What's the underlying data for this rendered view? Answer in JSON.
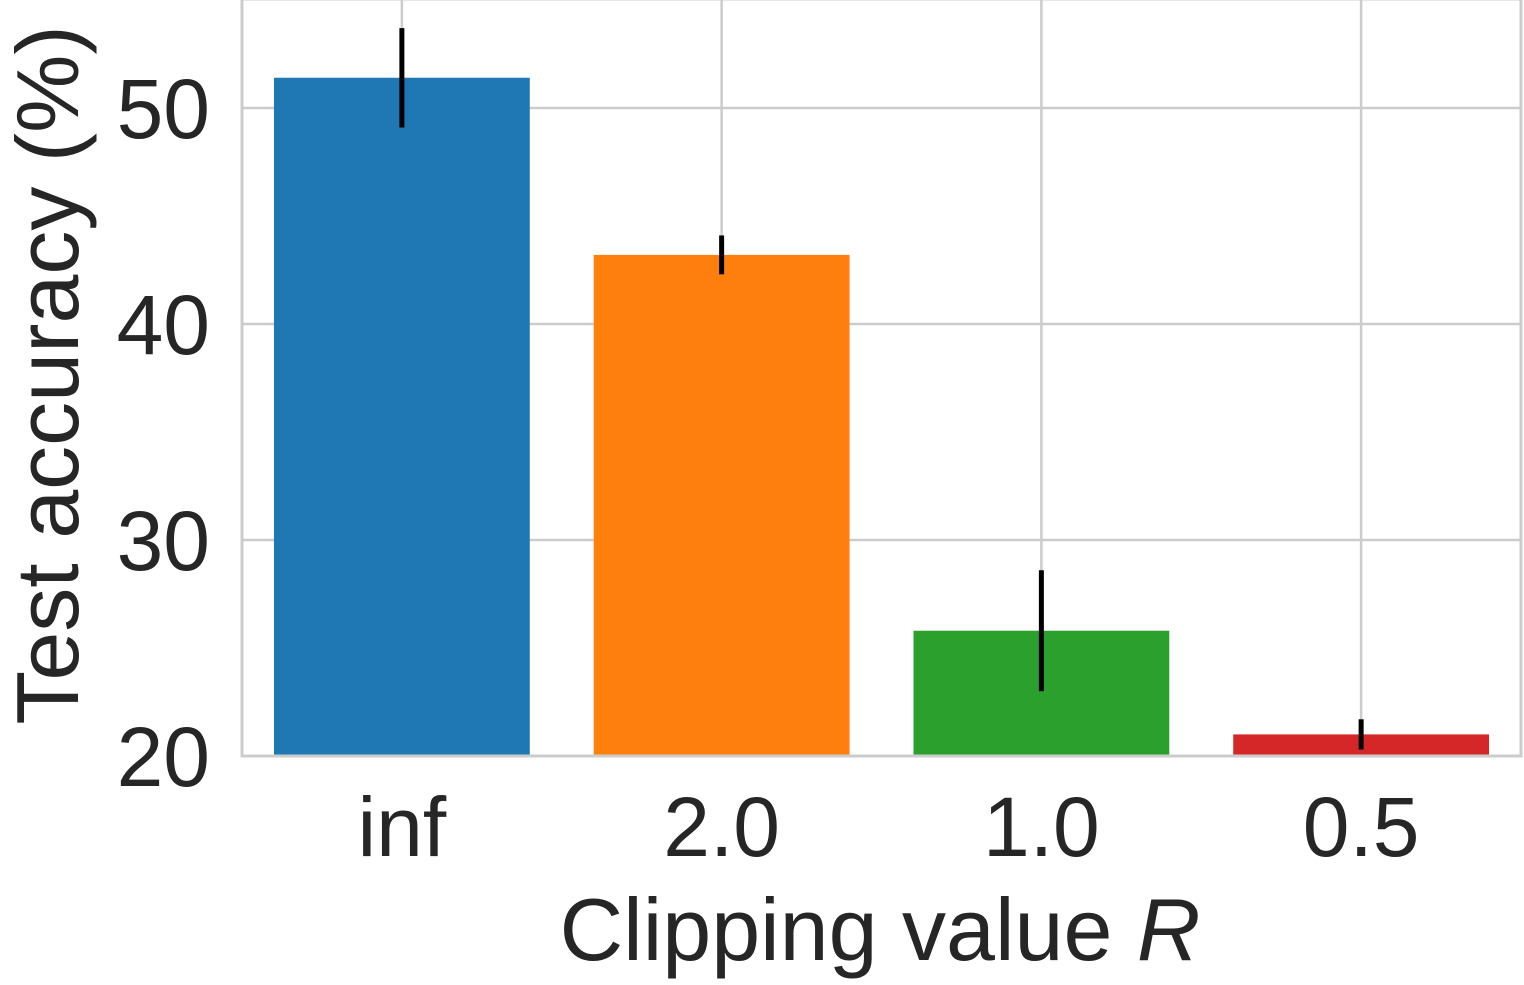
{
  "chart_data": {
    "type": "bar",
    "categories": [
      "inf",
      "2.0",
      "1.0",
      "0.5"
    ],
    "values": [
      51.4,
      43.2,
      25.8,
      21.0
    ],
    "errors": [
      2.3,
      0.9,
      2.8,
      0.7
    ],
    "colors": [
      "#1f77b4",
      "#ff7f0e",
      "#2ca02c",
      "#d62728"
    ],
    "error_color": "#000000",
    "grid_color": "#cccccc",
    "xlabel": "Clipping value ",
    "xlabel_italic": "R",
    "ylabel": "Test accuracy (%)",
    "ylim": [
      20,
      55
    ],
    "yticks": [
      20,
      30,
      40,
      50
    ],
    "grid": true,
    "legend": "none"
  }
}
